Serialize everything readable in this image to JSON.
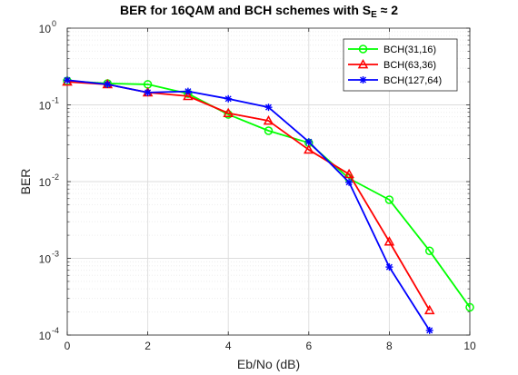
{
  "chart_data": {
    "type": "line",
    "title_main": "BER for 16QAM and BCH schemes with S",
    "title_subscript": "E",
    "title_suffix": " ≈ 2",
    "xlabel": "Eb/No (dB)",
    "ylabel": "BER",
    "xlim": [
      0,
      10
    ],
    "ylim": [
      0.0001,
      1
    ],
    "yscale": "log",
    "xticks": [
      "0",
      "2",
      "4",
      "6",
      "8",
      "10"
    ],
    "yticks": [
      {
        "base": "10",
        "exp": "0"
      },
      {
        "base": "10",
        "exp": "-1"
      },
      {
        "base": "10",
        "exp": "-2"
      },
      {
        "base": "10",
        "exp": "-3"
      },
      {
        "base": "10",
        "exp": "-4"
      }
    ],
    "grid": true,
    "legend_position": "top-right",
    "series": [
      {
        "name": "BCH(31,16)",
        "color": "#00ff00",
        "marker": "circle",
        "x": [
          0,
          1,
          2,
          3,
          4,
          5,
          6,
          7,
          8,
          9,
          10
        ],
        "y": [
          0.205,
          0.19,
          0.185,
          0.14,
          0.075,
          0.046,
          0.032,
          0.011,
          0.0058,
          0.00125,
          0.00023
        ]
      },
      {
        "name": "BCH(63,36)",
        "color": "#ff0000",
        "marker": "triangle",
        "x": [
          0,
          1,
          2,
          3,
          4,
          5,
          6,
          7,
          8,
          9
        ],
        "y": [
          0.2,
          0.185,
          0.145,
          0.13,
          0.078,
          0.062,
          0.026,
          0.0125,
          0.00165,
          0.00021
        ]
      },
      {
        "name": "BCH(127,64)",
        "color": "#0000ff",
        "marker": "asterisk",
        "x": [
          0,
          1,
          2,
          3,
          4,
          5,
          6,
          7,
          8,
          9
        ],
        "y": [
          0.21,
          0.185,
          0.145,
          0.15,
          0.12,
          0.093,
          0.033,
          0.0098,
          0.00077,
          0.000115
        ]
      }
    ]
  }
}
